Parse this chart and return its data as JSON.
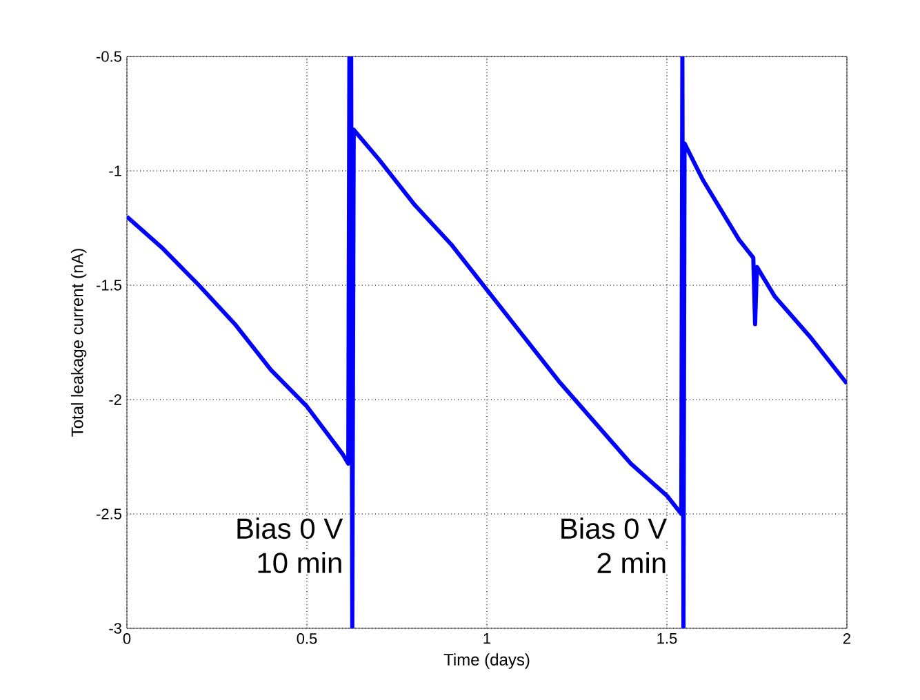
{
  "chart_data": {
    "type": "line",
    "xlabel": "Time (days)",
    "ylabel": "Total leakage current (nA)",
    "xlim": [
      0,
      2
    ],
    "ylim": [
      -3,
      -0.5
    ],
    "xticks": [
      0,
      0.5,
      1,
      1.5,
      2
    ],
    "yticks": [
      -3,
      -2.5,
      -2,
      -1.5,
      -1,
      -0.5
    ],
    "grid": true,
    "line_style": "solid",
    "marker": "none",
    "series": [
      {
        "color": "#0000ff",
        "x": [
          0,
          0.1,
          0.2,
          0.3,
          0.4,
          0.5,
          0.6,
          0.615,
          0.618,
          0.621,
          0.623,
          0.626,
          0.63,
          0.7,
          0.8,
          0.9,
          1.0,
          1.1,
          1.2,
          1.3,
          1.4,
          1.5,
          1.54,
          1.543,
          1.546,
          1.549,
          1.6,
          1.7,
          1.74,
          1.745,
          1.75,
          1.8,
          1.9,
          2.0
        ],
        "values": [
          -1.2,
          -1.34,
          -1.5,
          -1.67,
          -1.87,
          -2.03,
          -2.24,
          -2.28,
          -0.5,
          -1.97,
          -0.5,
          -3,
          -0.82,
          -0.95,
          -1.15,
          -1.32,
          -1.52,
          -1.72,
          -1.92,
          -2.1,
          -2.28,
          -2.42,
          -2.5,
          -0.5,
          -3,
          -0.88,
          -1.04,
          -1.3,
          -1.38,
          -1.67,
          -1.42,
          -1.55,
          -1.73,
          -1.93
        ]
      }
    ],
    "annotations": [
      "Bias 0 V",
      "10 min",
      "Bias 0 V",
      "2 min"
    ]
  }
}
